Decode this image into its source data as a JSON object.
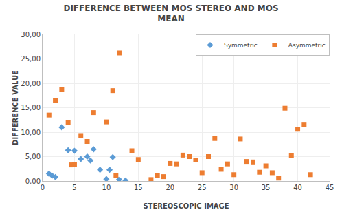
{
  "chart_data": {
    "type": "scatter",
    "title": "DIFFERENCE BETWEEN MOS STEREO AND MOS\nMEAN",
    "x_label": "STEREOSCOPIC IMAGE",
    "y_label": "DIFFERENCE VALUE",
    "xlim": [
      0,
      45
    ],
    "ylim": [
      0,
      30
    ],
    "xticks": [
      0,
      5,
      10,
      15,
      20,
      25,
      30,
      35,
      40,
      45
    ],
    "yticks": [
      {
        "value": 0,
        "label": "0,00"
      },
      {
        "value": 5,
        "label": "5,00"
      },
      {
        "value": 10,
        "label": "10,00"
      },
      {
        "value": 15,
        "label": "15,00"
      },
      {
        "value": 20,
        "label": "20,00"
      },
      {
        "value": 25,
        "label": "25,00"
      },
      {
        "value": 30,
        "label": "30,00"
      }
    ],
    "grid": true,
    "legend": "upper right",
    "series": [
      {
        "name": "Symmetric",
        "color": "#5B9BD5",
        "marker": "diamond",
        "x": [
          1,
          1.5,
          2,
          3,
          4,
          5,
          6,
          7,
          7.5,
          8,
          9,
          10,
          10.5,
          11,
          12,
          13
        ],
        "values": [
          1.5,
          1.1,
          0.8,
          11.0,
          6.3,
          6.2,
          4.5,
          5.0,
          4.2,
          6.5,
          2.3,
          0.4,
          2.3,
          4.9,
          0.3,
          0.1
        ]
      },
      {
        "name": "Asymmetric",
        "color": "#ED7D31",
        "marker": "square",
        "x": [
          1,
          2,
          3,
          4,
          4.5,
          5,
          6,
          7,
          8,
          10,
          11,
          11.5,
          12,
          14,
          15,
          17,
          18,
          19,
          20,
          21,
          22,
          23,
          24,
          25,
          26,
          27,
          28,
          29,
          30,
          31,
          32,
          33,
          34,
          35,
          36,
          37,
          38,
          39,
          40,
          41,
          42
        ],
        "values": [
          13.5,
          16.5,
          18.7,
          12.0,
          3.3,
          3.4,
          9.3,
          8.1,
          14.0,
          12.1,
          18.5,
          1.2,
          26.2,
          6.2,
          4.4,
          0.3,
          1.1,
          0.9,
          3.6,
          3.5,
          5.3,
          5.0,
          4.3,
          1.7,
          5.0,
          8.7,
          2.4,
          3.5,
          1.3,
          8.6,
          4.0,
          3.9,
          1.8,
          3.1,
          1.7,
          0.6,
          14.9,
          5.2,
          10.6,
          11.6,
          1.3
        ]
      }
    ]
  }
}
